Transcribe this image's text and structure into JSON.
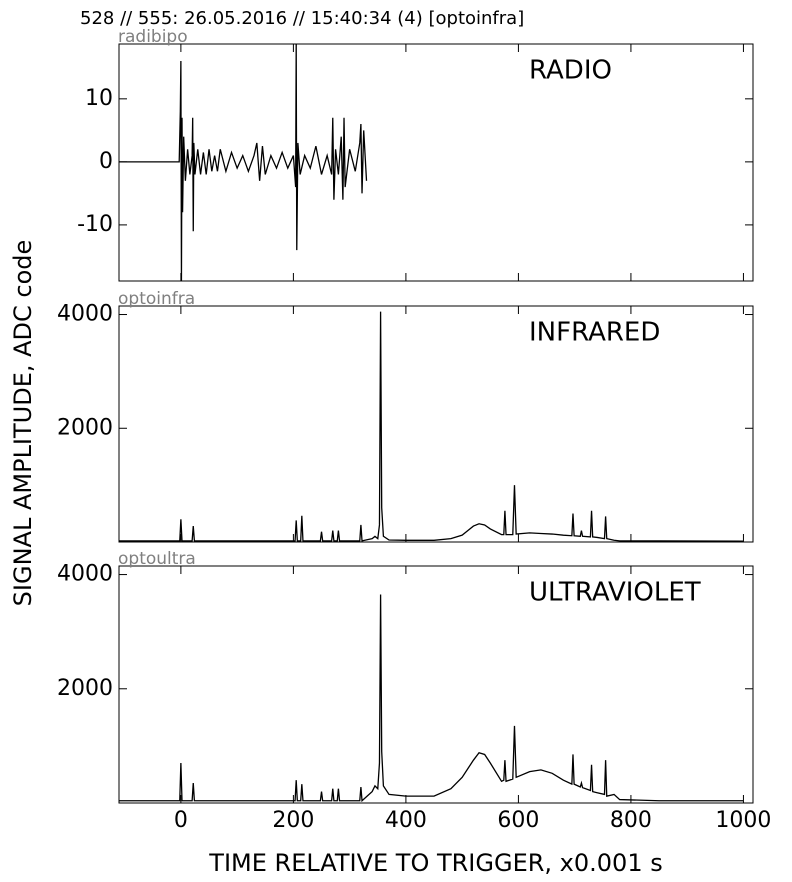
{
  "title": "528 // 555:   26.05.2016 // 15:40:34 (4)  [optoinfra]",
  "ylabel": "SIGNAL AMPLITUDE,  ADC code",
  "xlabel": "TIME RELATIVE TO TRIGGER,   x0.001 s",
  "chart_data": [
    {
      "type": "line",
      "subtitle": "radibipo",
      "annotation": "RADIO",
      "color": "#000000",
      "xlim": [
        -110,
        1017
      ],
      "ylim": [
        -18.9,
        18.7
      ],
      "yticks": [
        -10,
        0,
        10
      ],
      "x": [
        -110,
        -3,
        -1,
        0,
        1,
        2,
        3,
        5,
        8,
        12,
        16,
        20,
        21,
        22,
        23,
        25,
        30,
        35,
        40,
        45,
        50,
        55,
        60,
        65,
        70,
        80,
        90,
        100,
        110,
        120,
        130,
        135,
        140,
        145,
        150,
        160,
        170,
        180,
        190,
        200,
        204,
        205,
        206,
        208,
        212,
        220,
        230,
        240,
        250,
        260,
        268,
        270,
        272,
        275,
        280,
        285,
        288,
        290,
        292,
        300,
        310,
        318,
        320,
        322,
        325,
        330
      ],
      "values": [
        0,
        0,
        8,
        16,
        -19,
        7,
        -8,
        4,
        -3,
        2,
        -2,
        1,
        7,
        -11,
        3,
        -2,
        2,
        -2,
        1.5,
        -2,
        2,
        -1.5,
        1,
        -1.5,
        2,
        -1.5,
        1.5,
        -1,
        1,
        -1.5,
        1,
        3,
        -3,
        2.5,
        -2,
        1,
        -1,
        1.5,
        -1,
        1,
        -4,
        19,
        -14,
        3,
        -2,
        1,
        -1,
        2.5,
        -2,
        1,
        -2,
        7,
        -6,
        2,
        -2,
        4,
        -6,
        7,
        -4,
        2,
        -1.5,
        3,
        6,
        -5,
        5,
        -3
      ]
    },
    {
      "type": "line",
      "subtitle": "optoinfra",
      "annotation": "INFRARED",
      "color": "#000000",
      "xlim": [
        -110,
        1017
      ],
      "ylim": [
        0,
        4150
      ],
      "yticks": [
        2000,
        4000
      ],
      "x": [
        -110,
        -2,
        0,
        2,
        20,
        22,
        24,
        203,
        205,
        207,
        213,
        215,
        217,
        230,
        248,
        250,
        252,
        268,
        270,
        272,
        278,
        280,
        282,
        318,
        320,
        322,
        340,
        345,
        350,
        353,
        355,
        357,
        360,
        370,
        400,
        450,
        480,
        500,
        510,
        520,
        530,
        540,
        550,
        570,
        574,
        576,
        578,
        590,
        593,
        596,
        620,
        640,
        660,
        680,
        695,
        697,
        699,
        710,
        712,
        714,
        728,
        730,
        732,
        740,
        753,
        755,
        757,
        770,
        780,
        850,
        1000
      ],
      "values": [
        20,
        20,
        400,
        20,
        20,
        280,
        20,
        20,
        380,
        20,
        20,
        460,
        20,
        20,
        20,
        180,
        20,
        20,
        200,
        20,
        20,
        200,
        20,
        20,
        300,
        20,
        60,
        100,
        60,
        300,
        4050,
        600,
        100,
        35,
        30,
        30,
        60,
        120,
        200,
        280,
        320,
        300,
        230,
        130,
        130,
        550,
        130,
        130,
        1000,
        140,
        160,
        150,
        140,
        120,
        110,
        500,
        110,
        100,
        200,
        100,
        90,
        550,
        90,
        80,
        60,
        450,
        60,
        30,
        20,
        20,
        15
      ]
    },
    {
      "type": "line",
      "subtitle": "optoultra",
      "annotation": "ULTRAVIOLET",
      "color": "#000000",
      "xlim": [
        -110,
        1017
      ],
      "ylim": [
        0,
        4150
      ],
      "yticks": [
        2000,
        4000
      ],
      "xticks": [
        0,
        200,
        400,
        600,
        800,
        1000
      ],
      "x": [
        -110,
        -2,
        0,
        2,
        20,
        22,
        24,
        203,
        205,
        207,
        213,
        215,
        217,
        230,
        248,
        250,
        252,
        268,
        270,
        272,
        278,
        280,
        282,
        318,
        320,
        322,
        340,
        345,
        350,
        353,
        355,
        357,
        360,
        370,
        400,
        450,
        480,
        500,
        510,
        520,
        530,
        540,
        550,
        570,
        574,
        576,
        578,
        590,
        593,
        596,
        620,
        640,
        660,
        680,
        695,
        697,
        699,
        710,
        712,
        714,
        728,
        730,
        732,
        740,
        753,
        755,
        757,
        770,
        780,
        850,
        1000
      ],
      "values": [
        40,
        40,
        700,
        40,
        40,
        350,
        40,
        40,
        400,
        40,
        40,
        330,
        40,
        40,
        40,
        200,
        40,
        40,
        250,
        40,
        40,
        250,
        40,
        40,
        280,
        40,
        200,
        300,
        250,
        700,
        3650,
        900,
        300,
        150,
        120,
        120,
        250,
        450,
        600,
        750,
        880,
        850,
        700,
        380,
        400,
        750,
        380,
        420,
        1350,
        450,
        550,
        580,
        520,
        400,
        330,
        850,
        330,
        280,
        350,
        270,
        220,
        670,
        200,
        180,
        150,
        750,
        120,
        150,
        60,
        40,
        40
      ]
    }
  ]
}
